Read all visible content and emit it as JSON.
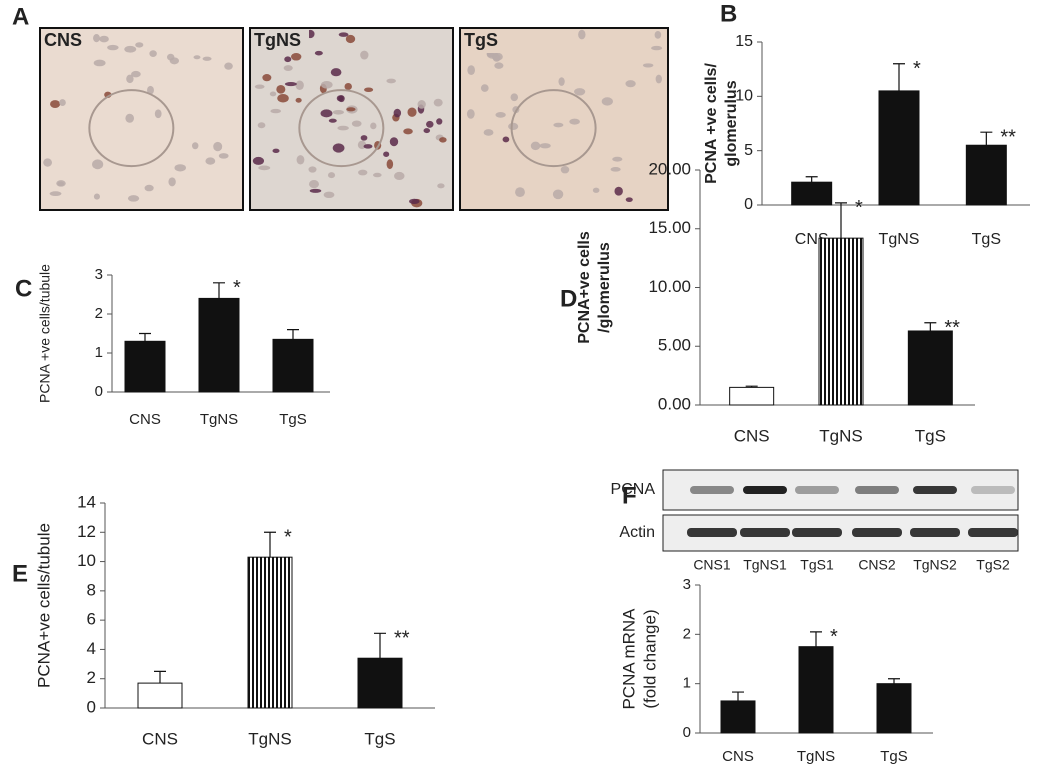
{
  "micrographs": {
    "panel": "A",
    "labels": [
      "CNS",
      "TgNS",
      "TgS"
    ]
  },
  "blot": {
    "panel": "F",
    "rows": [
      "PCNA",
      "Actin"
    ],
    "lanes": [
      "CNS1",
      "TgNS1",
      "TgS1",
      "CNS2",
      "TgNS2",
      "TgS2"
    ]
  },
  "chart_data": [
    {
      "type": "bar",
      "panel": "B",
      "y_label": [
        "PCNA +ve cells/",
        "glomerulus"
      ],
      "categories": [
        "CNS",
        "TgNS",
        "TgS"
      ],
      "values": [
        2.1,
        10.5,
        5.5
      ],
      "errors": [
        0.5,
        2.5,
        1.2
      ],
      "annotations": [
        null,
        "*",
        "**"
      ],
      "fills": [
        "black",
        "black",
        "black"
      ],
      "ylim": [
        0,
        15
      ],
      "yticks": [
        0,
        5,
        10,
        15
      ]
    },
    {
      "type": "bar",
      "panel": "C",
      "y_label": [
        "PCNA +ve cells/tubule"
      ],
      "categories": [
        "CNS",
        "TgNS",
        "TgS"
      ],
      "values": [
        1.3,
        2.4,
        1.35
      ],
      "errors": [
        0.2,
        0.4,
        0.25
      ],
      "annotations": [
        null,
        "*",
        null
      ],
      "fills": [
        "black",
        "black",
        "black"
      ],
      "ylim": [
        0,
        3
      ],
      "yticks": [
        0,
        1,
        2,
        3
      ]
    },
    {
      "type": "bar",
      "panel": "D",
      "y_label": [
        "PCNA+ve cells",
        "/glomerulus"
      ],
      "categories": [
        "CNS",
        "TgNS",
        "TgS"
      ],
      "values": [
        1.5,
        14.2,
        6.3
      ],
      "errors": [
        0.1,
        3.0,
        0.7
      ],
      "annotations": [
        null,
        "*",
        "**"
      ],
      "fills": [
        "white",
        "striped",
        "black"
      ],
      "ylim": [
        0,
        20
      ],
      "yticks": [
        {
          "value": 0,
          "label": "0.00"
        },
        {
          "value": 5,
          "label": "5.00"
        },
        {
          "value": 10,
          "label": "10.00"
        },
        {
          "value": 15,
          "label": "15.00"
        },
        {
          "value": 20,
          "label": "20.00"
        }
      ]
    },
    {
      "type": "bar",
      "panel": "E",
      "y_label": [
        "PCNA+ve cells/tubule"
      ],
      "categories": [
        "CNS",
        "TgNS",
        "TgS"
      ],
      "values": [
        1.7,
        10.3,
        3.4
      ],
      "errors": [
        0.8,
        1.7,
        1.7
      ],
      "annotations": [
        null,
        "*",
        "**"
      ],
      "fills": [
        "white",
        "striped",
        "black"
      ],
      "ylim": [
        0,
        14
      ],
      "yticks": [
        0,
        2,
        4,
        6,
        8,
        10,
        12,
        14
      ]
    },
    {
      "type": "bar",
      "y_label": [
        "PCNA mRNA",
        "(fold change)"
      ],
      "categories": [
        "CNS",
        "TgNS",
        "TgS"
      ],
      "values": [
        0.65,
        1.75,
        1.0
      ],
      "errors": [
        0.18,
        0.3,
        0.1
      ],
      "annotations": [
        null,
        "*",
        null
      ],
      "fills": [
        "black",
        "black",
        "black"
      ],
      "ylim": [
        0,
        3
      ],
      "yticks": [
        0,
        1,
        2,
        3
      ]
    }
  ]
}
